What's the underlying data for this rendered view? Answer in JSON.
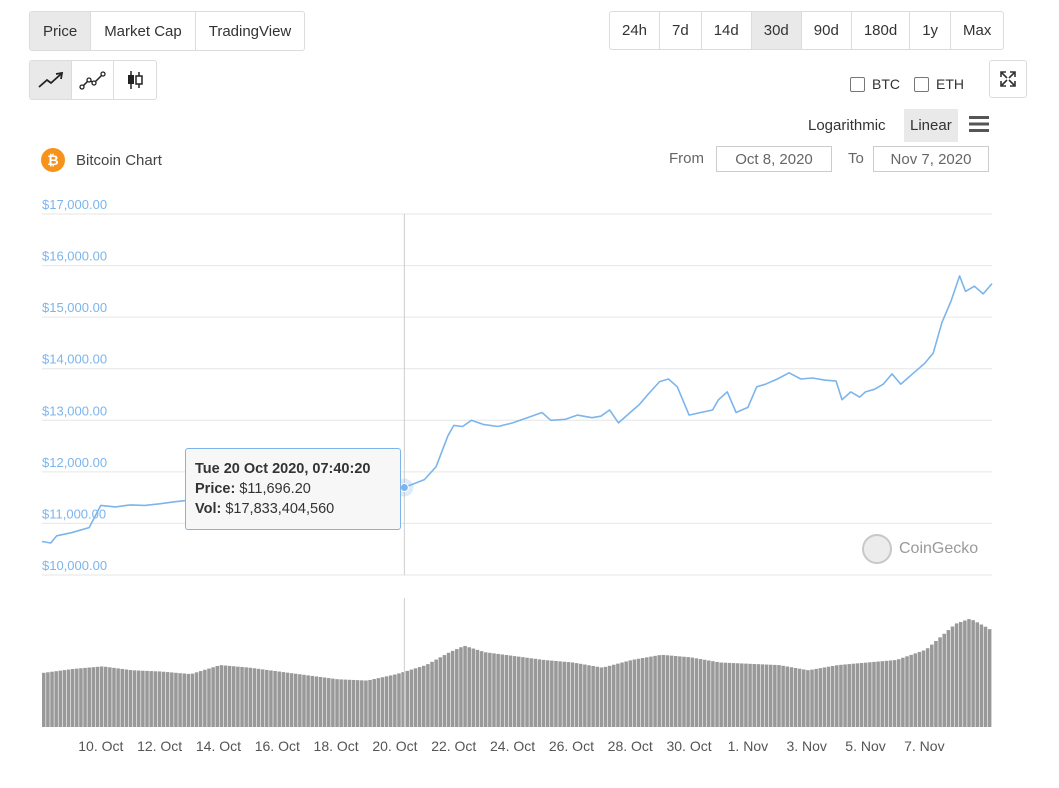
{
  "type_tabs": [
    {
      "label": "Price",
      "active": true
    },
    {
      "label": "Market Cap",
      "active": false
    },
    {
      "label": "TradingView",
      "active": false
    }
  ],
  "range_tabs": [
    {
      "label": "24h",
      "active": false
    },
    {
      "label": "7d",
      "active": false
    },
    {
      "label": "14d",
      "active": false
    },
    {
      "label": "30d",
      "active": true
    },
    {
      "label": "90d",
      "active": false
    },
    {
      "label": "180d",
      "active": false
    },
    {
      "label": "1y",
      "active": false
    },
    {
      "label": "Max",
      "active": false
    }
  ],
  "style_tabs": [
    {
      "icon": "line-chart-icon",
      "active": true
    },
    {
      "icon": "point-line-chart-icon",
      "active": false
    },
    {
      "icon": "candlestick-icon",
      "active": false
    }
  ],
  "compare": {
    "btc": "BTC",
    "eth": "ETH"
  },
  "scale": {
    "log": "Logarithmic",
    "linear": "Linear",
    "selected": "Linear"
  },
  "header": {
    "title": "Bitcoin Chart",
    "from_label": "From",
    "from_value": "Oct 8, 2020",
    "to_label": "To",
    "to_value": "Nov 7, 2020"
  },
  "tooltip": {
    "date": "Tue 20 Oct 2020, 07:40:20",
    "price_label": "Price:",
    "price_value": "$11,696.20",
    "vol_label": "Vol:",
    "vol_value": "$17,833,404,560"
  },
  "watermark": "CoinGecko",
  "colors": {
    "line": "#7cb5ec",
    "axis_text": "#7cb5ec",
    "volume": "#999999",
    "grid": "#e6e6e6",
    "coin": "#f7931a"
  },
  "chart_data": {
    "type": "line",
    "title": "Bitcoin Chart",
    "ylim": [
      10000,
      17000
    ],
    "y_ticks": [
      "$10,000.00",
      "$11,000.00",
      "$12,000.00",
      "$13,000.00",
      "$14,000.00",
      "$15,000.00",
      "$16,000.00",
      "$17,000.00"
    ],
    "x_ticks": [
      "10. Oct",
      "12. Oct",
      "14. Oct",
      "16. Oct",
      "18. Oct",
      "20. Oct",
      "22. Oct",
      "24. Oct",
      "26. Oct",
      "28. Oct",
      "30. Oct",
      "1. Nov",
      "3. Nov",
      "5. Nov",
      "7. Nov"
    ],
    "grid": true,
    "series": [
      {
        "values": [
          [
            8.0,
            10650
          ],
          [
            8.3,
            10620
          ],
          [
            8.5,
            10760
          ],
          [
            9.0,
            10820
          ],
          [
            9.6,
            10920
          ],
          [
            10.0,
            11350
          ],
          [
            10.5,
            11320
          ],
          [
            11.0,
            11360
          ],
          [
            11.5,
            11350
          ],
          [
            12.0,
            11380
          ],
          [
            12.5,
            11420
          ],
          [
            13.0,
            11450
          ],
          [
            13.5,
            11230
          ],
          [
            14.0,
            11400
          ],
          [
            14.5,
            11440
          ],
          [
            15.0,
            11500
          ],
          [
            15.5,
            11520
          ],
          [
            16.0,
            11490
          ],
          [
            16.5,
            11460
          ],
          [
            17.0,
            11430
          ],
          [
            17.5,
            11400
          ],
          [
            18.0,
            11420
          ],
          [
            18.5,
            11450
          ],
          [
            19.0,
            11480
          ],
          [
            19.5,
            11520
          ],
          [
            20.0,
            11700
          ],
          [
            20.3,
            11696
          ],
          [
            20.6,
            11760
          ],
          [
            21.0,
            11850
          ],
          [
            21.4,
            12100
          ],
          [
            21.8,
            12700
          ],
          [
            22.0,
            12900
          ],
          [
            22.3,
            12880
          ],
          [
            22.6,
            13000
          ],
          [
            23.0,
            12920
          ],
          [
            23.5,
            12880
          ],
          [
            24.0,
            12950
          ],
          [
            24.5,
            13050
          ],
          [
            25.0,
            13150
          ],
          [
            25.3,
            13000
          ],
          [
            25.8,
            13020
          ],
          [
            26.2,
            13100
          ],
          [
            26.7,
            13050
          ],
          [
            27.0,
            13080
          ],
          [
            27.3,
            13200
          ],
          [
            27.6,
            12950
          ],
          [
            28.0,
            13150
          ],
          [
            28.3,
            13300
          ],
          [
            28.6,
            13500
          ],
          [
            29.0,
            13750
          ],
          [
            29.3,
            13800
          ],
          [
            29.6,
            13650
          ],
          [
            30.0,
            13100
          ],
          [
            30.4,
            13150
          ],
          [
            30.8,
            13200
          ],
          [
            31.0,
            13400
          ],
          [
            31.3,
            13550
          ],
          [
            31.6,
            13150
          ],
          [
            32.0,
            13250
          ],
          [
            32.3,
            13650
          ],
          [
            32.6,
            13700
          ],
          [
            33.0,
            13800
          ],
          [
            33.4,
            13920
          ],
          [
            33.8,
            13800
          ],
          [
            34.2,
            13820
          ],
          [
            34.6,
            13780
          ],
          [
            35.0,
            13760
          ],
          [
            35.2,
            13400
          ],
          [
            35.5,
            13550
          ],
          [
            35.8,
            13450
          ],
          [
            36.0,
            13550
          ],
          [
            36.3,
            13600
          ],
          [
            36.6,
            13700
          ],
          [
            36.9,
            13900
          ],
          [
            37.2,
            13700
          ],
          [
            37.4,
            13800
          ],
          [
            37.7,
            13950
          ],
          [
            38.0,
            14100
          ],
          [
            38.3,
            14300
          ],
          [
            38.6,
            14900
          ],
          [
            38.9,
            15300
          ],
          [
            39.2,
            15800
          ],
          [
            39.4,
            15500
          ],
          [
            39.7,
            15600
          ],
          [
            40.0,
            15450
          ],
          [
            40.3,
            15650
          ]
        ]
      }
    ],
    "volume": [
      [
        8.0,
        0.42
      ],
      [
        9.0,
        0.45
      ],
      [
        10.0,
        0.47
      ],
      [
        11.0,
        0.44
      ],
      [
        12.0,
        0.43
      ],
      [
        13.0,
        0.41
      ],
      [
        14.0,
        0.48
      ],
      [
        15.0,
        0.46
      ],
      [
        16.0,
        0.43
      ],
      [
        17.0,
        0.4
      ],
      [
        18.0,
        0.37
      ],
      [
        19.0,
        0.36
      ],
      [
        20.0,
        0.41
      ],
      [
        21.0,
        0.48
      ],
      [
        21.8,
        0.58
      ],
      [
        22.3,
        0.63
      ],
      [
        23.0,
        0.58
      ],
      [
        24.0,
        0.55
      ],
      [
        25.0,
        0.52
      ],
      [
        26.0,
        0.5
      ],
      [
        27.0,
        0.46
      ],
      [
        28.0,
        0.52
      ],
      [
        29.0,
        0.56
      ],
      [
        30.0,
        0.54
      ],
      [
        31.0,
        0.5
      ],
      [
        32.0,
        0.49
      ],
      [
        33.0,
        0.48
      ],
      [
        34.0,
        0.44
      ],
      [
        35.0,
        0.48
      ],
      [
        36.0,
        0.5
      ],
      [
        37.0,
        0.52
      ],
      [
        38.0,
        0.6
      ],
      [
        39.0,
        0.8
      ],
      [
        39.5,
        0.84
      ],
      [
        40.0,
        0.78
      ],
      [
        40.3,
        0.74
      ]
    ]
  }
}
